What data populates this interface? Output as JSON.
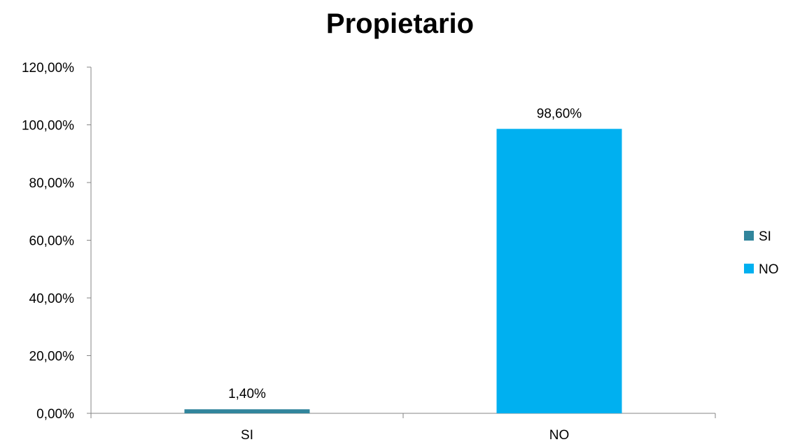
{
  "chart_data": {
    "type": "bar",
    "title": "Propietario",
    "xlabel": "",
    "ylabel": "",
    "categories": [
      "SI",
      "NO"
    ],
    "values": [
      1.4,
      98.6
    ],
    "value_labels": [
      "1,40%",
      "98,60%"
    ],
    "colors": [
      "#31859C",
      "#00B0F0"
    ],
    "ylim": [
      0,
      120
    ],
    "y_ticks": [
      0,
      20,
      40,
      60,
      80,
      100,
      120
    ],
    "y_tick_labels": [
      "0,00%",
      "20,00%",
      "40,00%",
      "60,00%",
      "80,00%",
      "100,00%",
      "120,00%"
    ],
    "grid": false,
    "legend": {
      "position": "right",
      "entries": [
        {
          "label": "SI",
          "color": "#31859C"
        },
        {
          "label": "NO",
          "color": "#00B0F0"
        }
      ]
    }
  }
}
